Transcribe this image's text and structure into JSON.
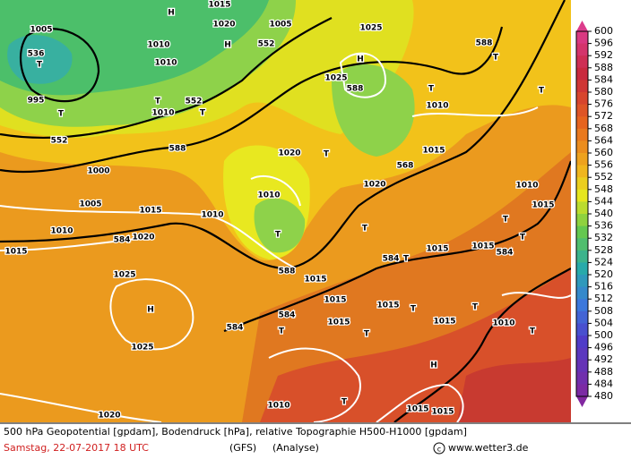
{
  "map": {
    "labels": [
      "1005",
      "536",
      "T",
      "995",
      "T",
      "552",
      "H",
      "1015",
      "1020",
      "H",
      "552",
      "1005",
      "1010",
      "1010",
      "T",
      "552",
      "T",
      "1010",
      "588",
      "1000",
      "1005",
      "1015",
      "1010",
      "584",
      "1020",
      "1015",
      "1010",
      "1025",
      "H",
      "1025",
      "588",
      "T",
      "1010",
      "588",
      "T",
      "T",
      "1020",
      "T",
      "568",
      "1015",
      "1010",
      "T",
      "588",
      "1020",
      "T",
      "1025",
      "H",
      "1025",
      "584",
      "T",
      "1015",
      "1015",
      "584",
      "T",
      "T",
      "1010",
      "1015",
      "1015",
      "1015",
      "1015",
      "T",
      "584",
      "584",
      "T",
      "1015",
      "T",
      "1015",
      "T",
      "1010",
      "H",
      "T",
      "1010",
      "1020",
      "1015",
      "1015",
      "T"
    ]
  },
  "colorbar": {
    "labels": [
      600,
      596,
      592,
      588,
      584,
      580,
      576,
      572,
      568,
      564,
      560,
      556,
      552,
      548,
      544,
      540,
      536,
      532,
      528,
      524,
      520,
      516,
      512,
      508,
      504,
      500,
      496,
      492,
      488,
      484,
      480
    ]
  },
  "footer": {
    "description": "500 hPa Geopotential [gpdam], Bodendruck [hPa], relative Topographie H500-H1000 [gpdam]",
    "date": "Samstag, 22-07-2017  18 UTC",
    "model": "(GFS)",
    "run": "(Analyse)",
    "source": "www.wetter3.de"
  }
}
